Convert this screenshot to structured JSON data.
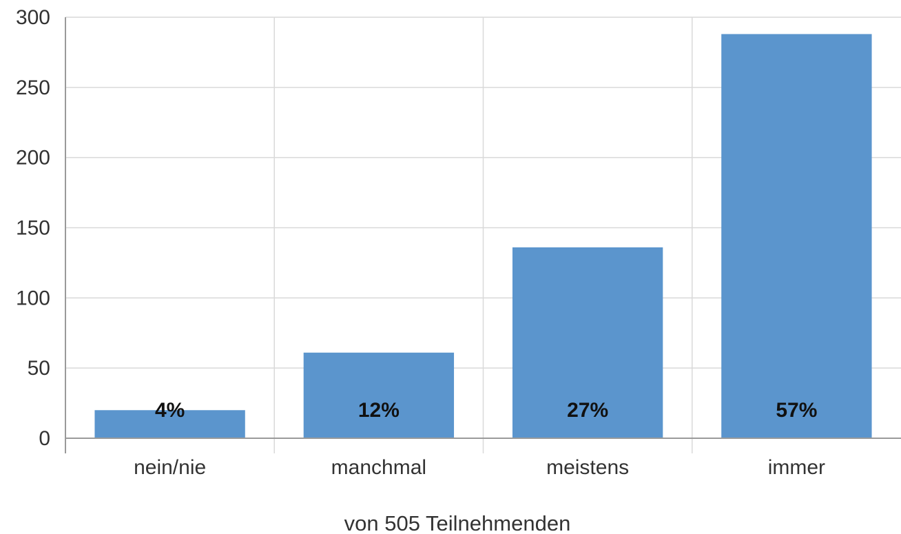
{
  "chart_data": {
    "type": "bar",
    "title": "",
    "xlabel": "von 505 Teilnehmenden",
    "ylabel": "",
    "categories": [
      "nein/nie",
      "manchmal",
      "meistens",
      "immer"
    ],
    "values": [
      20,
      61,
      136,
      288
    ],
    "data_labels": [
      "4%",
      "12%",
      "27%",
      "57%"
    ],
    "ylim": [
      0,
      300
    ],
    "yticks": [
      0,
      50,
      100,
      150,
      200,
      250,
      300
    ],
    "grid": true,
    "bar_color": "#5b95cd",
    "legend": "none"
  }
}
